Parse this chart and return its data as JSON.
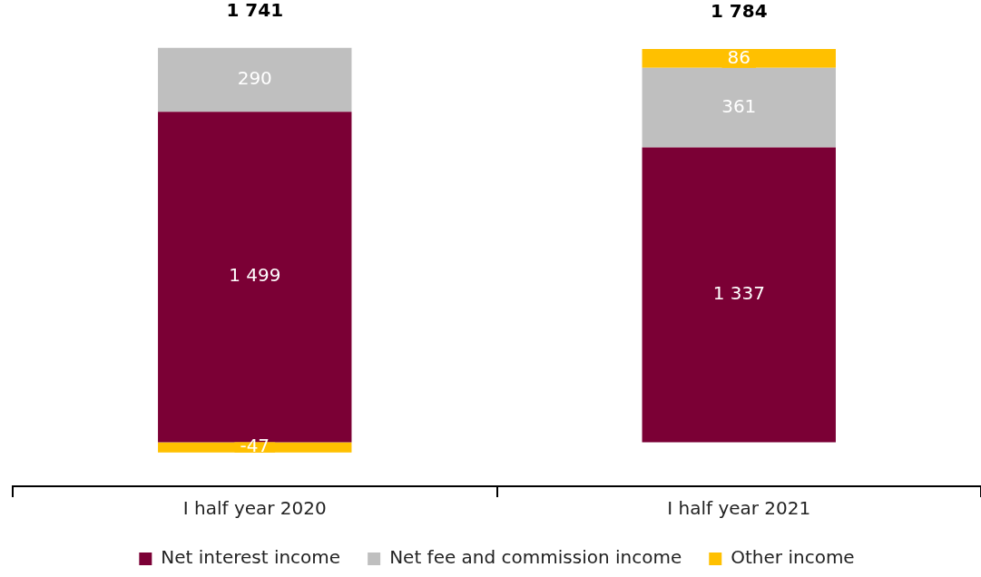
{
  "chart_data": {
    "type": "bar",
    "stacked": true,
    "categories": [
      "I half year 2020",
      "I half year 2021"
    ],
    "series": [
      {
        "name": "Net interest income",
        "color": "#7b0035",
        "values": [
          1499,
          1337
        ],
        "value_labels": [
          "1 499",
          "1 337"
        ]
      },
      {
        "name": "Net fee and commission income",
        "color": "#bfbfbf",
        "values": [
          290,
          361
        ],
        "value_labels": [
          "290",
          "361"
        ]
      },
      {
        "name": "Other income",
        "color": "#ffc000",
        "values": [
          -47,
          86
        ],
        "value_labels": [
          "-47",
          "86"
        ]
      }
    ],
    "totals": [
      "1 741",
      "1 784"
    ],
    "grid": false,
    "legend": "bottom"
  }
}
